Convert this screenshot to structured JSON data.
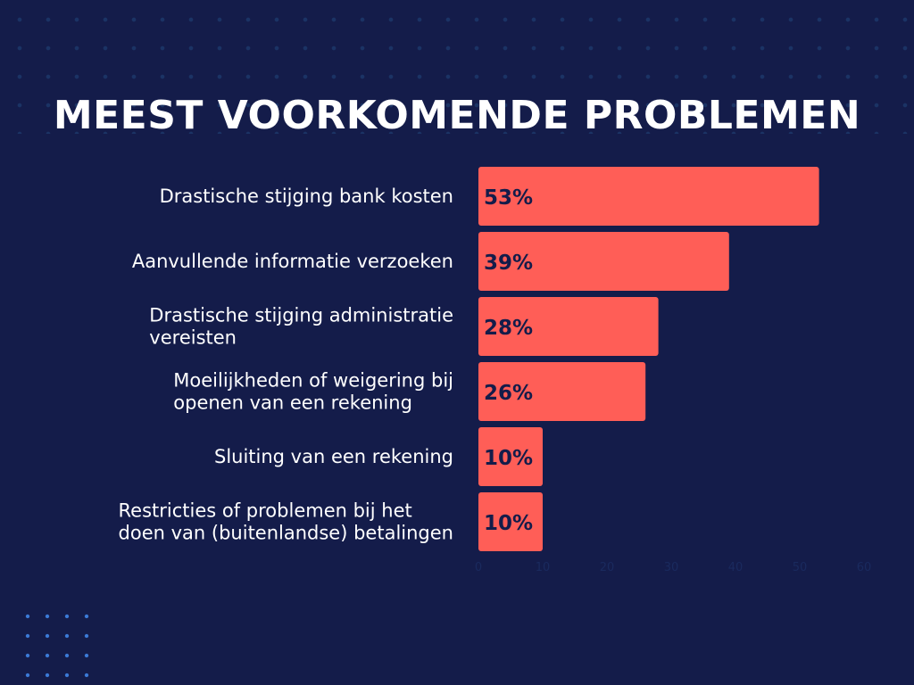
{
  "chart_data": {
    "type": "bar",
    "orientation": "horizontal",
    "title": "MEEST VOORKOMENDE PROBLEMEN",
    "categories": [
      [
        "Drastische stijging bank kosten"
      ],
      [
        "Aanvullende informatie verzoeken"
      ],
      [
        "Drastische stijging administratie",
        "vereisten"
      ],
      [
        "Moeilijkheden of weigering bij",
        "openen van een rekening"
      ],
      [
        "Sluiting van een rekening"
      ],
      [
        "Restricties of problemen bij het",
        "doen van (buitenlandse) betalingen"
      ]
    ],
    "values": [
      53,
      39,
      28,
      26,
      10,
      10
    ],
    "value_labels": [
      "53%",
      "39%",
      "28%",
      "26%",
      "10%",
      "10%"
    ],
    "xlim": [
      0,
      60
    ],
    "xticks": [
      0,
      10,
      20,
      30,
      40,
      50,
      60
    ],
    "grid": false,
    "colors": {
      "background": "#141c4a",
      "bar": "#ff5e57",
      "value_text": "#141c4a",
      "label_text": "#ffffff",
      "tick_text": "#1a2a5e"
    }
  }
}
